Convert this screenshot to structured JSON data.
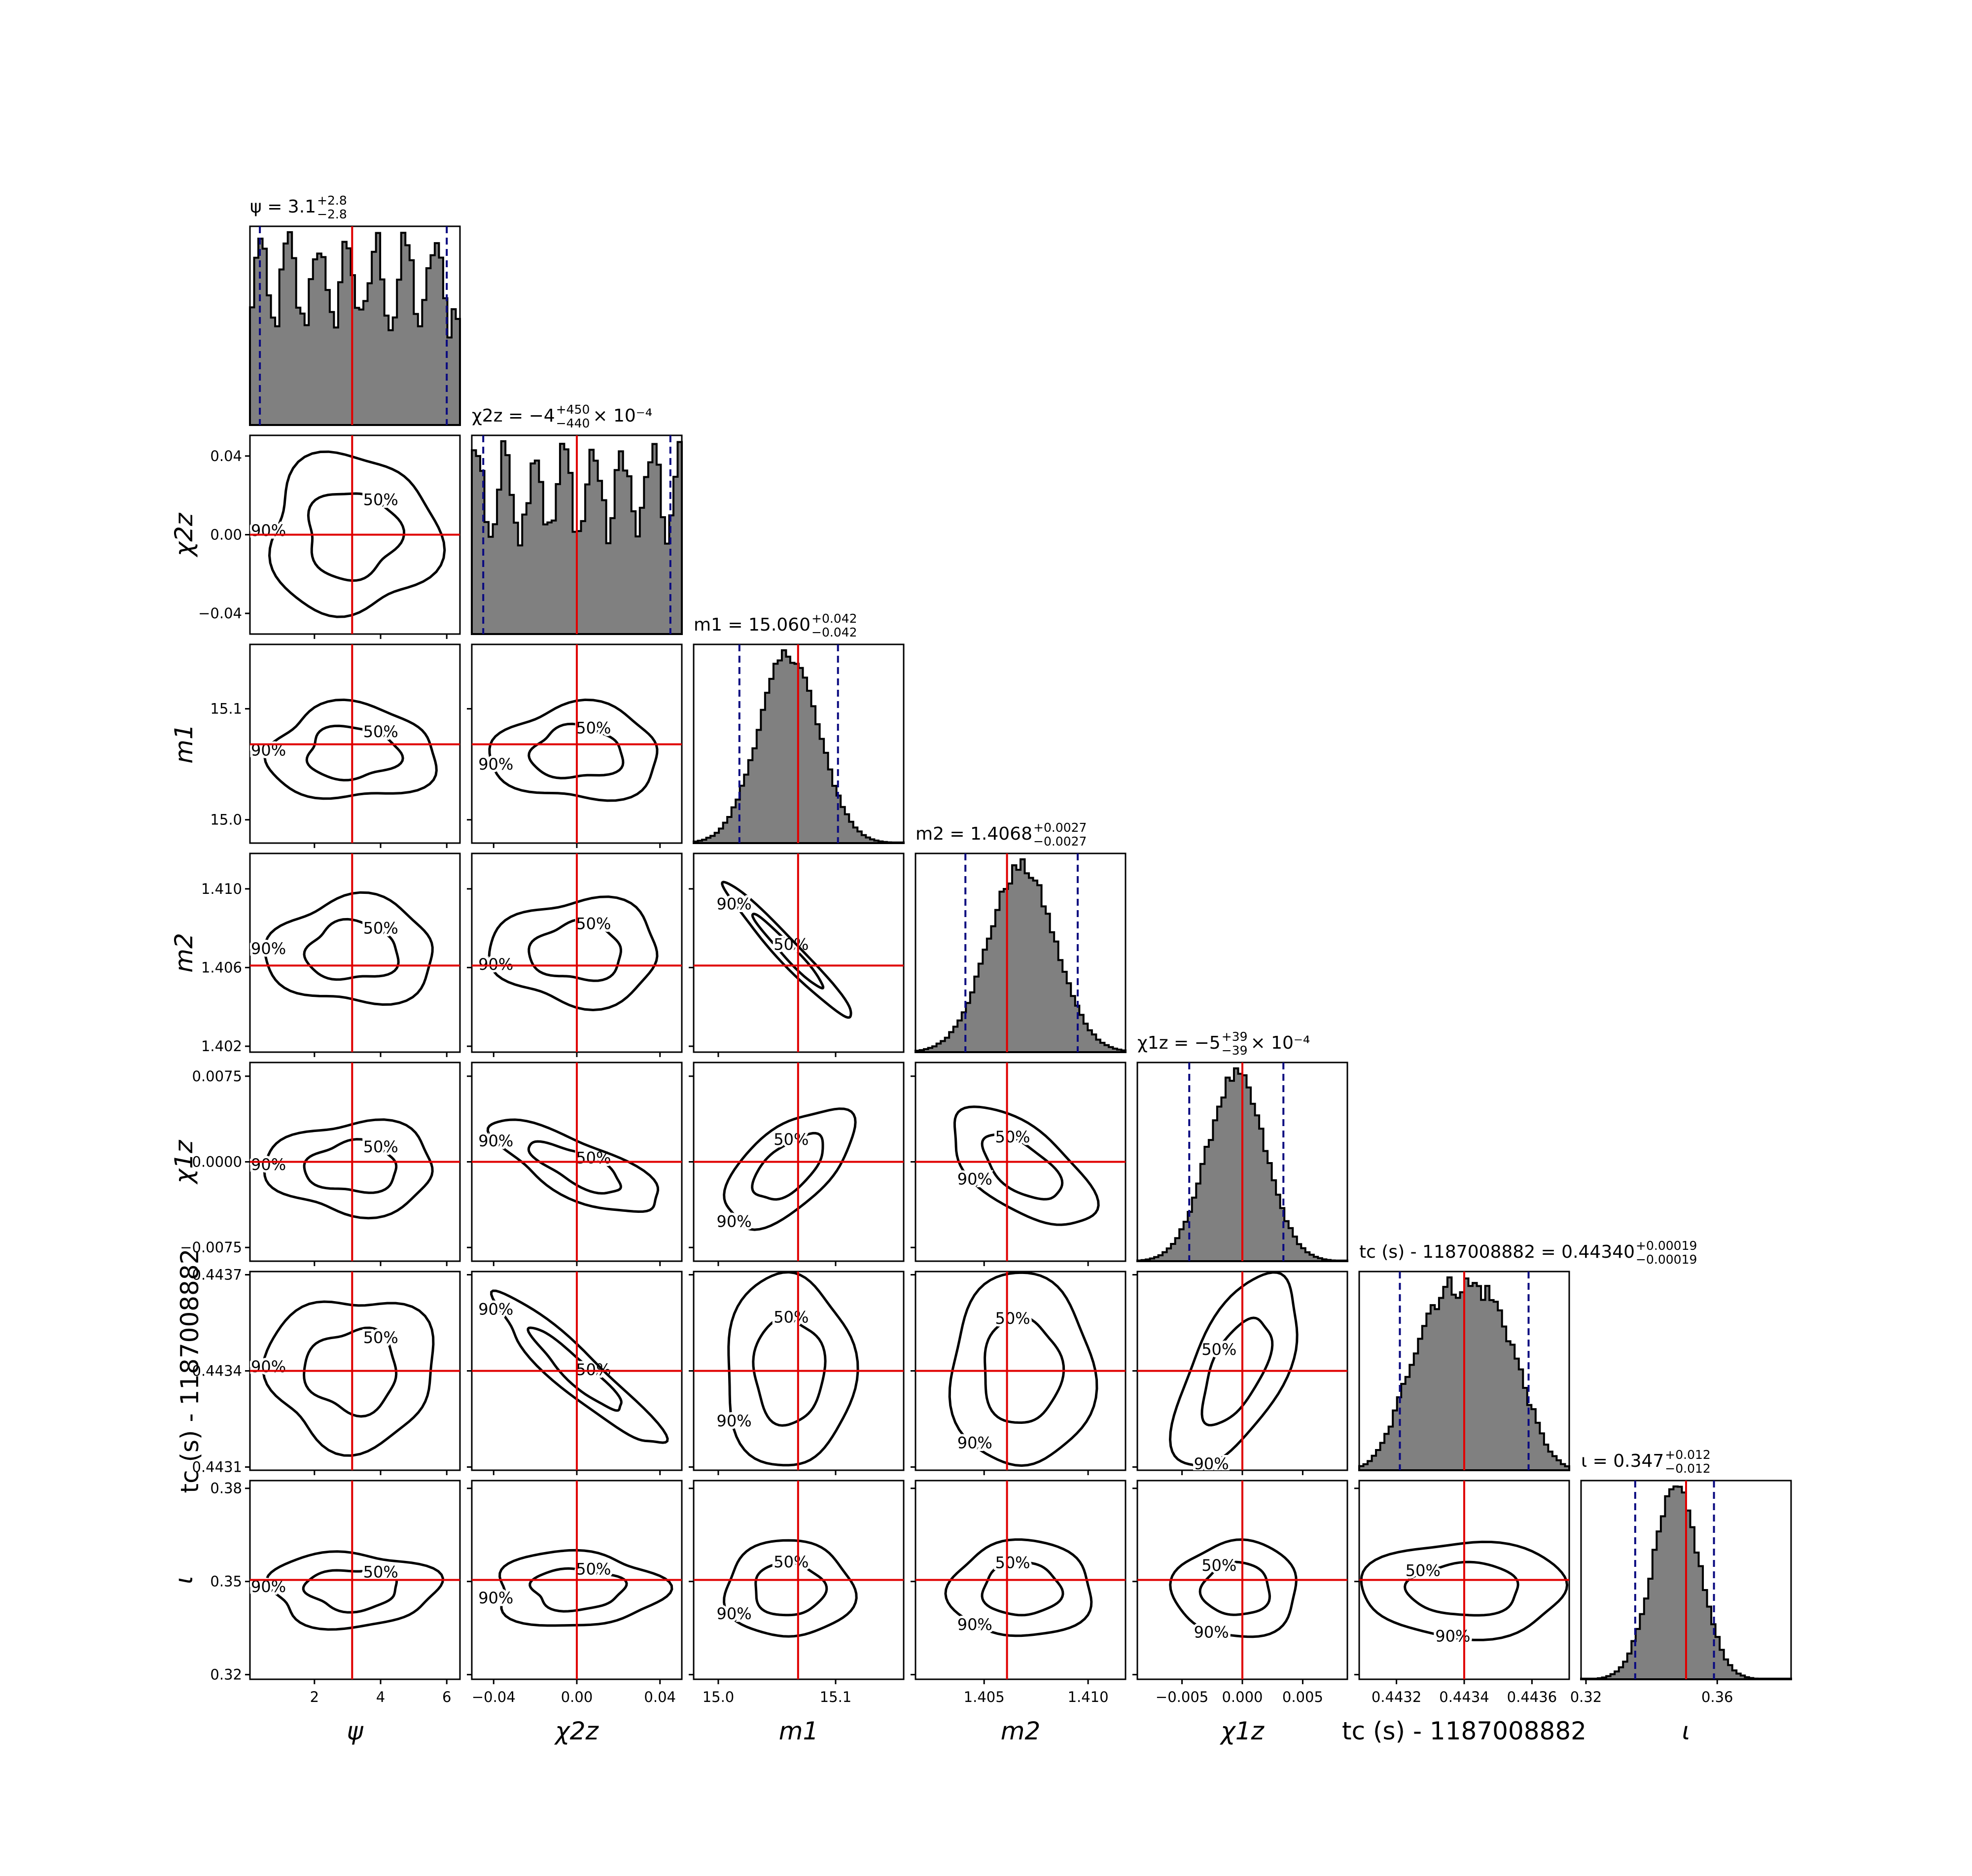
{
  "chart_data": {
    "type": "corner",
    "reference_color": "#e00000",
    "interval_color": "#0a0a80",
    "hist_fill": "#808080",
    "contour_levels": [
      "50%",
      "90%"
    ],
    "parameters": [
      {
        "key": "psi",
        "axis_label": "ψ",
        "title_prefix": "ψ",
        "title_value": "3.1",
        "title_plus": "+2.8",
        "title_minus": "−2.8",
        "title_suffix": "",
        "range": [
          0.05,
          6.4
        ],
        "ticks": [
          2,
          4,
          6
        ],
        "tick_labels": [
          "2",
          "4",
          "6"
        ],
        "truth": 3.14,
        "interval": [
          0.35,
          6.0
        ],
        "peak": 3.14,
        "width": 5.0
      },
      {
        "key": "chi2z",
        "axis_label": "χ2z",
        "title_prefix": "χ2z",
        "title_value": "−4",
        "title_plus": "+450",
        "title_minus": "−440",
        "title_suffix": "× 10⁻⁴",
        "range": [
          -0.0505,
          0.0505
        ],
        "ticks": [
          -0.04,
          0.0,
          0.04
        ],
        "tick_labels": [
          "−0.04",
          "0.00",
          "0.04"
        ],
        "truth": 0.0,
        "interval": [
          -0.045,
          0.045
        ],
        "peak": 0.0,
        "width": 0.09
      },
      {
        "key": "m1",
        "axis_label": "m1",
        "title_prefix": "m1",
        "title_value": "15.060",
        "title_plus": "+0.042",
        "title_minus": "−0.042",
        "title_suffix": "",
        "range": [
          14.979,
          15.158
        ],
        "ticks": [
          15.0,
          15.1
        ],
        "tick_labels": [
          "15.0",
          "15.1"
        ],
        "truth": 15.068,
        "interval": [
          15.018,
          15.102
        ],
        "peak": 15.06,
        "width": 0.0255
      },
      {
        "key": "m2",
        "axis_label": "m2",
        "title_prefix": "m2",
        "title_value": "1.4068",
        "title_plus": "+0.0027",
        "title_minus": "−0.0027",
        "title_suffix": "",
        "range": [
          1.4017,
          1.4118
        ],
        "ticks": [
          1.405,
          1.41
        ],
        "tick_labels": [
          "1.405",
          "1.410"
        ],
        "truth": 1.4061,
        "interval": [
          1.4041,
          1.4095
        ],
        "peak": 1.4068,
        "width": 0.0016
      },
      {
        "key": "chi1z",
        "axis_label": "χ1z",
        "title_prefix": "χ1z",
        "title_value": "−5",
        "title_plus": "+39",
        "title_minus": "−39",
        "title_suffix": "× 10⁻⁴",
        "range": [
          -0.0087,
          0.0087
        ],
        "ticks": [
          -0.005,
          0.0,
          0.005
        ],
        "tick_labels": [
          "−0.005",
          "0.000",
          "0.005"
        ],
        "truth": 0.0,
        "interval": [
          -0.0044,
          0.0034
        ],
        "peak": -0.0005,
        "width": 0.0024
      },
      {
        "key": "tc",
        "axis_label": "tc (s) - 1187008882",
        "title_prefix": "tc (s) - 1187008882",
        "title_value": "0.44340",
        "title_plus": "+0.00019",
        "title_minus": "−0.00019",
        "title_suffix": "",
        "range": [
          0.44309,
          0.44371
        ],
        "ticks": [
          0.4432,
          0.4434,
          0.4436
        ],
        "tick_labels": [
          "0.4432",
          "0.4434",
          "0.4436"
        ],
        "truth": 0.4434,
        "interval": [
          0.44321,
          0.44359
        ],
        "peak": 0.4434,
        "width": 0.00014
      },
      {
        "key": "iota",
        "axis_label": "ι",
        "title_prefix": "ι",
        "title_value": "0.347",
        "title_plus": "+0.012",
        "title_minus": "−0.012",
        "title_suffix": "",
        "range": [
          0.3185,
          0.3825
        ],
        "ticks": [
          0.32,
          0.36
        ],
        "tick_labels": [
          "0.32",
          "0.36"
        ],
        "truth": 0.3505,
        "interval": [
          0.335,
          0.359
        ],
        "peak": 0.3475,
        "width": 0.0072
      }
    ],
    "y_tick_labels": {
      "chi2z": [
        "−0.04",
        "0.00",
        "0.04"
      ],
      "m1": [
        "15.0",
        "15.1"
      ],
      "m2": [
        "1.402",
        "1.406",
        "1.410"
      ],
      "chi1z": [
        "−0.0075",
        "0.0000",
        "0.0075"
      ],
      "tc": [
        "0.4431",
        "0.4434",
        "0.4437"
      ],
      "iota": [
        "0.32",
        "0.35",
        "0.38"
      ]
    },
    "y_ticks": {
      "chi2z": [
        -0.04,
        0.0,
        0.04
      ],
      "m1": [
        15.0,
        15.1
      ],
      "m2": [
        1.402,
        1.406,
        1.41
      ],
      "chi1z": [
        -0.0075,
        0.0,
        0.0075
      ],
      "tc": [
        0.4431,
        0.4434,
        0.4437
      ],
      "iota": [
        0.32,
        0.35,
        0.38
      ]
    },
    "correlations": {
      "m1|m2": -0.97,
      "chi2z|tc": -0.93,
      "chi2z|chi1z": -0.75,
      "m1|chi1z": 0.6,
      "m2|chi1z": -0.6,
      "chi1z|tc": 0.6
    }
  }
}
